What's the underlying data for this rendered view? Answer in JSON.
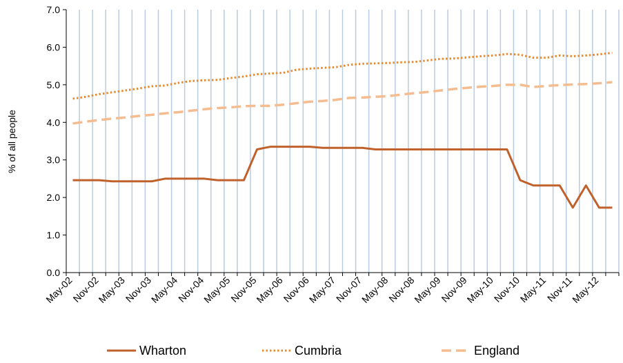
{
  "chart_data": {
    "type": "line",
    "ylabel": "% of all people",
    "xlabel": "",
    "ylim": [
      0,
      7
    ],
    "yticks": [
      "0.0",
      "1.0",
      "2.0",
      "3.0",
      "4.0",
      "5.0",
      "6.0",
      "7.0"
    ],
    "x": [
      "May-02",
      "Aug-02",
      "Nov-02",
      "Feb-03",
      "May-03",
      "Aug-03",
      "Nov-03",
      "Feb-04",
      "May-04",
      "Aug-04",
      "Nov-04",
      "Feb-05",
      "May-05",
      "Aug-05",
      "Nov-05",
      "Feb-06",
      "May-06",
      "Aug-06",
      "Nov-06",
      "Feb-07",
      "May-07",
      "Aug-07",
      "Nov-07",
      "Feb-08",
      "May-08",
      "Aug-08",
      "Nov-08",
      "Feb-09",
      "May-09",
      "Aug-09",
      "Nov-09",
      "Feb-10",
      "May-10",
      "Aug-10",
      "Nov-10",
      "Feb-11",
      "May-11",
      "Aug-11",
      "Nov-11",
      "Feb-12",
      "May-12",
      "Aug-12"
    ],
    "xtick_labels": [
      "May-02",
      "Nov-02",
      "May-03",
      "Nov-03",
      "May-04",
      "Nov-04",
      "May-05",
      "Nov-05",
      "May-06",
      "Nov-06",
      "May-07",
      "Nov-07",
      "May-08",
      "Nov-08",
      "May-09",
      "Nov-09",
      "May-10",
      "Nov-10",
      "May-11",
      "Nov-11",
      "May-12"
    ],
    "grid": "vertical",
    "legend_position": "bottom",
    "series": [
      {
        "name": "Wharton",
        "color": "#C0602A",
        "style": "solid",
        "values": [
          2.46,
          2.46,
          2.46,
          2.43,
          2.43,
          2.43,
          2.43,
          2.5,
          2.5,
          2.5,
          2.5,
          2.46,
          2.46,
          2.46,
          3.28,
          3.35,
          3.35,
          3.35,
          3.35,
          3.32,
          3.32,
          3.32,
          3.32,
          3.28,
          3.28,
          3.28,
          3.28,
          3.28,
          3.28,
          3.28,
          3.28,
          3.28,
          3.28,
          3.28,
          2.46,
          2.32,
          2.32,
          2.32,
          1.73,
          2.32,
          1.73,
          1.73
        ]
      },
      {
        "name": "Cumbria",
        "color": "#E88A2E",
        "style": "dotted",
        "values": [
          4.63,
          4.68,
          4.75,
          4.8,
          4.85,
          4.9,
          4.96,
          4.98,
          5.05,
          5.1,
          5.12,
          5.13,
          5.18,
          5.22,
          5.28,
          5.3,
          5.32,
          5.4,
          5.43,
          5.45,
          5.47,
          5.53,
          5.56,
          5.57,
          5.58,
          5.6,
          5.61,
          5.65,
          5.69,
          5.7,
          5.73,
          5.76,
          5.78,
          5.82,
          5.8,
          5.72,
          5.72,
          5.78,
          5.76,
          5.78,
          5.81,
          5.85
        ]
      },
      {
        "name": "England",
        "color": "#F5BC8F",
        "style": "dashed",
        "values": [
          3.97,
          4.02,
          4.06,
          4.1,
          4.13,
          4.17,
          4.2,
          4.24,
          4.27,
          4.31,
          4.35,
          4.38,
          4.4,
          4.43,
          4.44,
          4.44,
          4.47,
          4.51,
          4.55,
          4.57,
          4.6,
          4.65,
          4.66,
          4.68,
          4.7,
          4.74,
          4.78,
          4.81,
          4.85,
          4.89,
          4.92,
          4.95,
          4.97,
          5.0,
          5.0,
          4.94,
          4.97,
          4.99,
          5.01,
          5.02,
          5.04,
          5.07
        ]
      }
    ]
  }
}
